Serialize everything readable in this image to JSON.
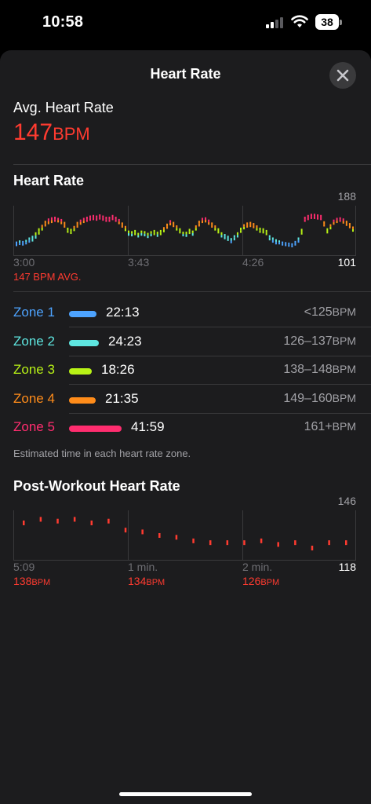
{
  "status_bar": {
    "time": "10:58",
    "battery": "38"
  },
  "sheet": {
    "title": "Heart Rate"
  },
  "avg": {
    "label": "Avg. Heart Rate",
    "value": "147",
    "unit": "BPM"
  },
  "heart_rate_section": {
    "title": "Heart Rate",
    "avg_caption": "147 BPM AVG."
  },
  "zones": [
    {
      "name": "Zone 1",
      "time": "22:13",
      "range": "<125",
      "unit": "BPM",
      "color": "#4da3ff",
      "share": 0.22
    },
    {
      "name": "Zone 2",
      "time": "24:23",
      "range": "126–137",
      "unit": "BPM",
      "color": "#5ee6e0",
      "share": 0.24
    },
    {
      "name": "Zone 3",
      "time": "18:26",
      "range": "138–148",
      "unit": "BPM",
      "color": "#b8f216",
      "share": 0.18
    },
    {
      "name": "Zone 4",
      "time": "21:35",
      "range": "149–160",
      "unit": "BPM",
      "color": "#ff8c1a",
      "share": 0.21
    },
    {
      "name": "Zone 5",
      "time": "41:59",
      "range": "161+",
      "unit": "BPM",
      "color": "#ff2d6f",
      "share": 0.42
    }
  ],
  "zones_footnote": "Estimated time in each heart rate zone.",
  "post_workout": {
    "title": "Post-Workout Heart Rate",
    "values": [
      {
        "value": "138",
        "unit": "BPM"
      },
      {
        "value": "134",
        "unit": "BPM"
      },
      {
        "value": "126",
        "unit": "BPM"
      }
    ]
  },
  "chart_data": [
    {
      "type": "bar",
      "name": "heart-rate-chart",
      "x_ticks": [
        "3:00",
        "3:43",
        "4:26"
      ],
      "ylim": [
        101,
        188
      ],
      "y_tick_labels": [
        "188",
        "101"
      ],
      "avg": 147,
      "colors": {
        "zone1": "#4da3ff",
        "zone2": "#5ee6e0",
        "zone3": "#b8f216",
        "zone4": "#ff8c1a",
        "zone5": "#ff2d6f"
      },
      "ranges": [
        [
          118,
          126
        ],
        [
          120,
          128
        ],
        [
          119,
          127
        ],
        [
          121,
          129
        ],
        [
          124,
          133
        ],
        [
          126,
          136
        ],
        [
          131,
          142
        ],
        [
          138,
          149
        ],
        [
          145,
          155
        ],
        [
          152,
          162
        ],
        [
          156,
          166
        ],
        [
          158,
          168
        ],
        [
          160,
          169
        ],
        [
          159,
          167
        ],
        [
          156,
          165
        ],
        [
          150,
          160
        ],
        [
          141,
          150
        ],
        [
          139,
          148
        ],
        [
          144,
          153
        ],
        [
          150,
          160
        ],
        [
          155,
          164
        ],
        [
          158,
          167
        ],
        [
          160,
          169
        ],
        [
          162,
          171
        ],
        [
          163,
          172
        ],
        [
          162,
          171
        ],
        [
          164,
          173
        ],
        [
          162,
          171
        ],
        [
          160,
          169
        ],
        [
          160,
          169
        ],
        [
          163,
          172
        ],
        [
          160,
          169
        ],
        [
          156,
          165
        ],
        [
          150,
          159
        ],
        [
          144,
          153
        ],
        [
          136,
          145
        ],
        [
          135,
          144
        ],
        [
          137,
          146
        ],
        [
          133,
          141
        ],
        [
          136,
          145
        ],
        [
          135,
          144
        ],
        [
          132,
          141
        ],
        [
          135,
          144
        ],
        [
          137,
          146
        ],
        [
          134,
          143
        ],
        [
          137,
          146
        ],
        [
          142,
          151
        ],
        [
          148,
          157
        ],
        [
          154,
          163
        ],
        [
          151,
          160
        ],
        [
          145,
          154
        ],
        [
          140,
          149
        ],
        [
          135,
          143
        ],
        [
          134,
          143
        ],
        [
          139,
          148
        ],
        [
          136,
          145
        ],
        [
          145,
          154
        ],
        [
          152,
          162
        ],
        [
          158,
          167
        ],
        [
          159,
          168
        ],
        [
          155,
          164
        ],
        [
          150,
          159
        ],
        [
          145,
          154
        ],
        [
          140,
          149
        ],
        [
          133,
          142
        ],
        [
          130,
          139
        ],
        [
          127,
          136
        ],
        [
          123,
          132
        ],
        [
          128,
          137
        ],
        [
          133,
          142
        ],
        [
          141,
          150
        ],
        [
          147,
          156
        ],
        [
          150,
          159
        ],
        [
          151,
          160
        ],
        [
          149,
          158
        ],
        [
          145,
          154
        ],
        [
          141,
          150
        ],
        [
          140,
          149
        ],
        [
          137,
          146
        ],
        [
          128,
          137
        ],
        [
          124,
          133
        ],
        [
          121,
          130
        ],
        [
          121,
          128
        ],
        [
          119,
          126
        ],
        [
          118,
          125
        ],
        [
          117,
          124
        ],
        [
          116,
          123
        ],
        [
          119,
          127
        ],
        [
          124,
          133
        ],
        [
          138,
          148
        ],
        [
          160,
          169
        ],
        [
          163,
          172
        ],
        [
          165,
          174
        ],
        [
          165,
          174
        ],
        [
          164,
          173
        ],
        [
          163,
          172
        ],
        [
          152,
          161
        ],
        [
          140,
          149
        ],
        [
          147,
          156
        ],
        [
          155,
          164
        ],
        [
          158,
          167
        ],
        [
          160,
          168
        ],
        [
          157,
          166
        ],
        [
          153,
          162
        ],
        [
          149,
          158
        ],
        [
          143,
          152
        ]
      ]
    },
    {
      "type": "scatter",
      "name": "post-workout-chart",
      "x_ticks": [
        "5:09",
        "1 min.",
        "2 min."
      ],
      "ylim": [
        118,
        146
      ],
      "y_tick_labels": [
        "146",
        "118"
      ],
      "color": "#ff3b30",
      "points": [
        [
          0,
          139
        ],
        [
          1,
          141
        ],
        [
          2,
          140
        ],
        [
          3,
          141
        ],
        [
          4,
          139
        ],
        [
          5,
          140
        ],
        [
          6,
          135
        ],
        [
          7,
          134
        ],
        [
          8,
          132
        ],
        [
          9,
          131
        ],
        [
          10,
          129
        ],
        [
          11,
          128
        ],
        [
          12,
          128
        ],
        [
          13,
          128
        ],
        [
          14,
          129
        ],
        [
          15,
          127
        ],
        [
          16,
          128
        ],
        [
          17,
          125
        ],
        [
          18,
          128
        ],
        [
          19,
          128
        ]
      ]
    }
  ]
}
